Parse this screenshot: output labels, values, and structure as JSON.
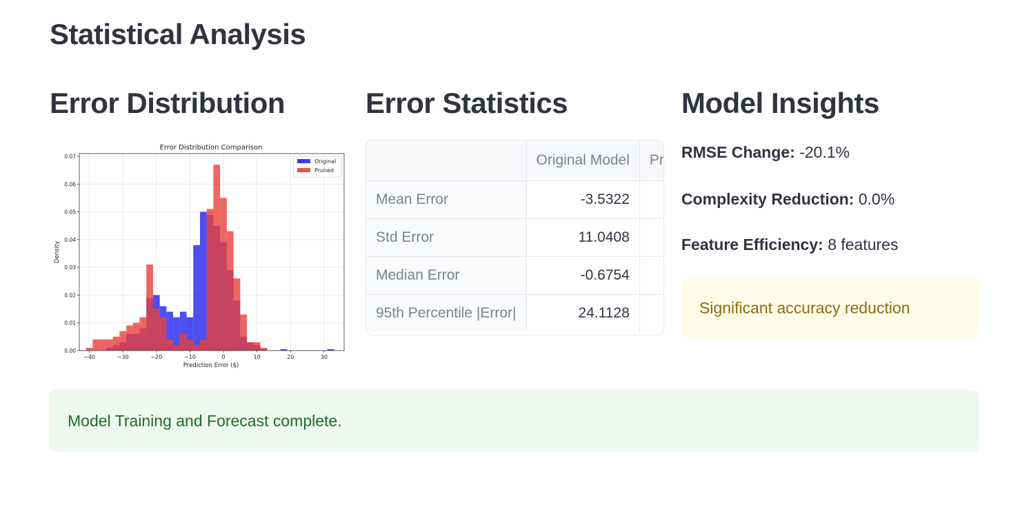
{
  "page": {
    "title": "Statistical Analysis"
  },
  "columns": {
    "distribution_heading": "Error Distribution",
    "statistics_heading": "Error Statistics",
    "insights_heading": "Model Insights"
  },
  "chart_data": {
    "type": "bar",
    "title": "Error Distribution Comparison",
    "xlabel": "Prediction Error ($)",
    "ylabel": "Density",
    "xlim": [
      -43,
      36
    ],
    "ylim": [
      0,
      0.071
    ],
    "xticks": [
      -40,
      -30,
      -20,
      -10,
      0,
      10,
      20,
      30
    ],
    "xtick_labels": [
      "−40",
      "−30",
      "−20",
      "−10",
      "0",
      "10",
      "20",
      "30"
    ],
    "yticks": [
      0.0,
      0.01,
      0.02,
      0.03,
      0.04,
      0.05,
      0.06,
      0.07
    ],
    "ytick_labels": [
      "0.00",
      "0.01",
      "0.02",
      "0.03",
      "0.04",
      "0.05",
      "0.06",
      "0.07"
    ],
    "grid": true,
    "legend_position": "top-right",
    "series": [
      {
        "name": "Original",
        "color": "#2222ee",
        "bin_start": -35,
        "bin_width": 2,
        "values": [
          0.001,
          0.002,
          0.003,
          0.006,
          0.006,
          0.008,
          0.019,
          0.02,
          0.016,
          0.014,
          0.012,
          0.014,
          0.012,
          0.038,
          0.05,
          0.049,
          0.045,
          0.039,
          0.029,
          0.018,
          0.005,
          0.003,
          0.002,
          0.0005,
          0.0,
          0.0,
          0.0005,
          0.0,
          0.0,
          0.0,
          0.0,
          0.0,
          0.0,
          0.0005
        ]
      },
      {
        "name": "Pruned",
        "color": "#e8403a",
        "bin_start": -41,
        "bin_width": 2,
        "values": [
          0.001,
          0.004,
          0.004,
          0.004,
          0.005,
          0.007,
          0.009,
          0.01,
          0.012,
          0.031,
          0.015,
          0.012,
          0.004,
          0.002,
          0.006,
          0.004,
          0.002,
          0.004,
          0.051,
          0.067,
          0.055,
          0.043,
          0.026,
          0.013,
          0.003,
          0.003,
          0.001
        ]
      }
    ]
  },
  "stats_table": {
    "columns": [
      "",
      "Original Model",
      "Pruned Model"
    ],
    "rows": [
      {
        "label": "Mean Error",
        "original": "-3.5322"
      },
      {
        "label": "Std Error",
        "original": "11.0408"
      },
      {
        "label": "Median Error",
        "original": "-0.6754"
      },
      {
        "label": "95th Percentile |Error|",
        "original": "24.1128"
      }
    ]
  },
  "insights": {
    "rmse_label": "RMSE Change:",
    "rmse_value": "-20.1%",
    "complexity_label": "Complexity Reduction:",
    "complexity_value": "0.0%",
    "feature_label": "Feature Efficiency:",
    "feature_value": "8 features",
    "warning": "Significant accuracy reduction"
  },
  "status": {
    "success_message": "Model Training and Forecast complete."
  }
}
